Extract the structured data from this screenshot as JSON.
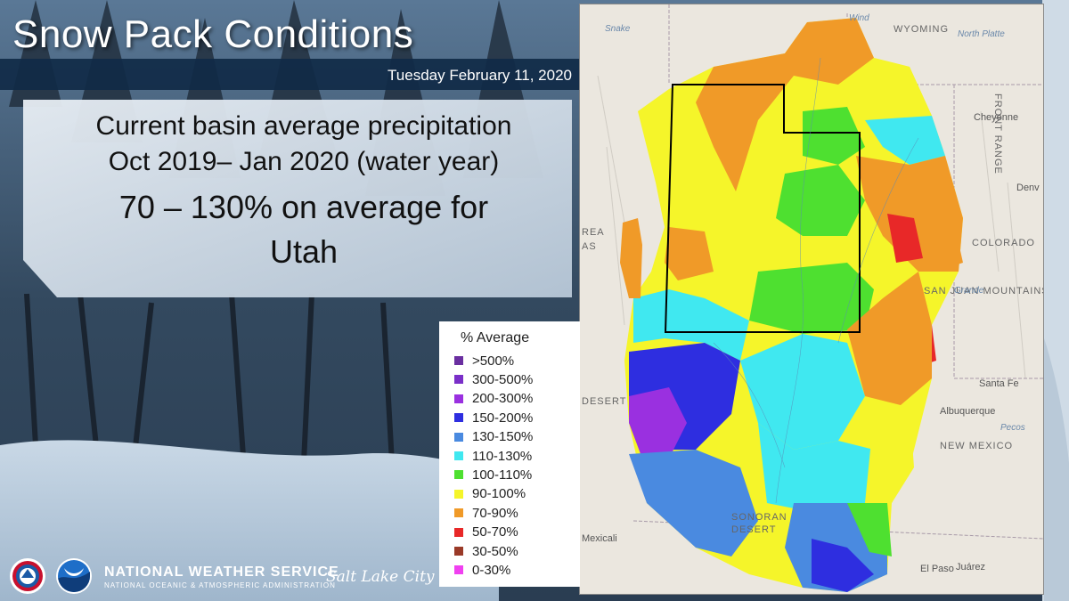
{
  "header": {
    "title": "Snow Pack Conditions",
    "date": "Tuesday February 11, 2020"
  },
  "summary": {
    "line1": "Current basin average precipitation",
    "line2": "Oct 2019– Jan 2020 (water year)",
    "line3": "70 – 130% on average for",
    "line4": "Utah"
  },
  "map": {
    "labels": {
      "wyoming": "WYOMING",
      "colorado": "COLORADO",
      "new_mexico": "NEW MEXICO",
      "cheyenne": "Cheyenne",
      "denver": "Denv",
      "santa_fe": "Santa Fe",
      "albuquerque": "Albuquerque",
      "el_paso": "El Paso",
      "juarez": "Juárez",
      "mexicali": "Mexicali",
      "snake": "Snake",
      "wind": "Wind",
      "north_platte": "North Platte",
      "pecos": "Pecos",
      "front_range": "FRONT RANGE",
      "san_juan": "SAN JUAN MOUNTAINS",
      "grande": "Grande",
      "sonoran": "SONORAN",
      "desert_s": "DESERT",
      "desert_w": "DESERT",
      "great_basin": "REA",
      "great_basin2": "AS"
    }
  },
  "legend": {
    "title": "% Average",
    "items": [
      {
        "label": ">500%",
        "color": "#6a2fa0"
      },
      {
        "label": "300-500%",
        "color": "#7a2fc8"
      },
      {
        "label": "200-300%",
        "color": "#9a30e0"
      },
      {
        "label": "150-200%",
        "color": "#2e2ee0"
      },
      {
        "label": "130-150%",
        "color": "#4a8ae0"
      },
      {
        "label": "110-130%",
        "color": "#40e8f0"
      },
      {
        "label": "100-110%",
        "color": "#4ee030"
      },
      {
        "label": "90-100%",
        "color": "#f5f52a"
      },
      {
        "label": "70-90%",
        "color": "#f09a28"
      },
      {
        "label": "50-70%",
        "color": "#e82828"
      },
      {
        "label": "30-50%",
        "color": "#9a3a28"
      },
      {
        "label": "0-30%",
        "color": "#f040f0"
      }
    ]
  },
  "footer": {
    "nws": "NATIONAL WEATHER SERVICE",
    "noaa": "NATIONAL OCEANIC & ATMOSPHERIC ADMINISTRATION",
    "office": "Salt Lake City"
  }
}
